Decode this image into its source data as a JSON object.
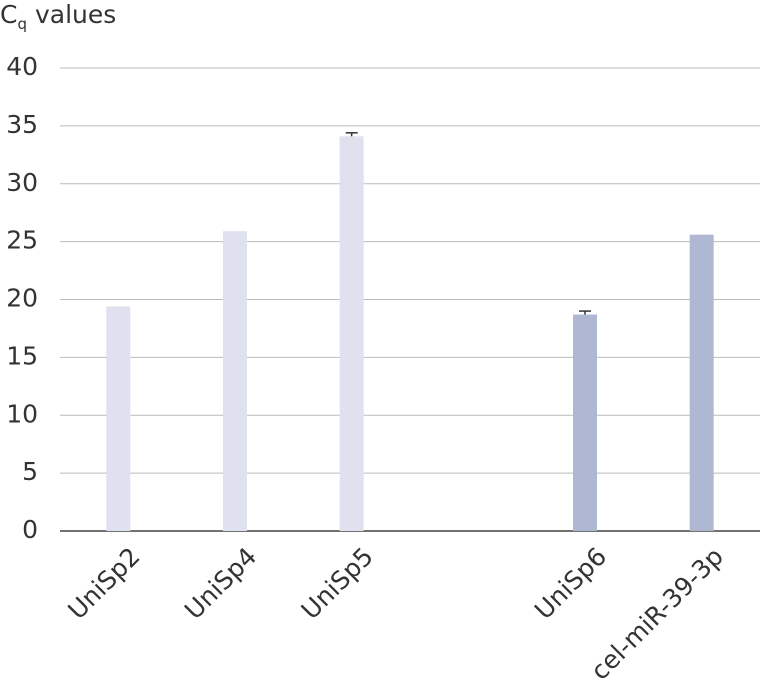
{
  "chart_data": {
    "type": "bar",
    "y_label": [
      "C",
      "q",
      "values"
    ],
    "categories": [
      "UniSp2",
      "UniSp4",
      "UniSp5",
      null,
      "UniSp6",
      "cel-miR-39-3p"
    ],
    "values": [
      19.4,
      25.9,
      34.1,
      null,
      18.7,
      25.6
    ],
    "errors": [
      null,
      null,
      0.3,
      null,
      0.3,
      null
    ],
    "colors": [
      "#dfe1ee",
      "#dfe1ee",
      "#dfe1ee",
      null,
      "#b0b7d3",
      "#b0b7d3"
    ],
    "ylim": [
      0,
      40
    ],
    "yticks": [
      0,
      5,
      10,
      15,
      20,
      25,
      30,
      35,
      40
    ],
    "grid": true
  }
}
